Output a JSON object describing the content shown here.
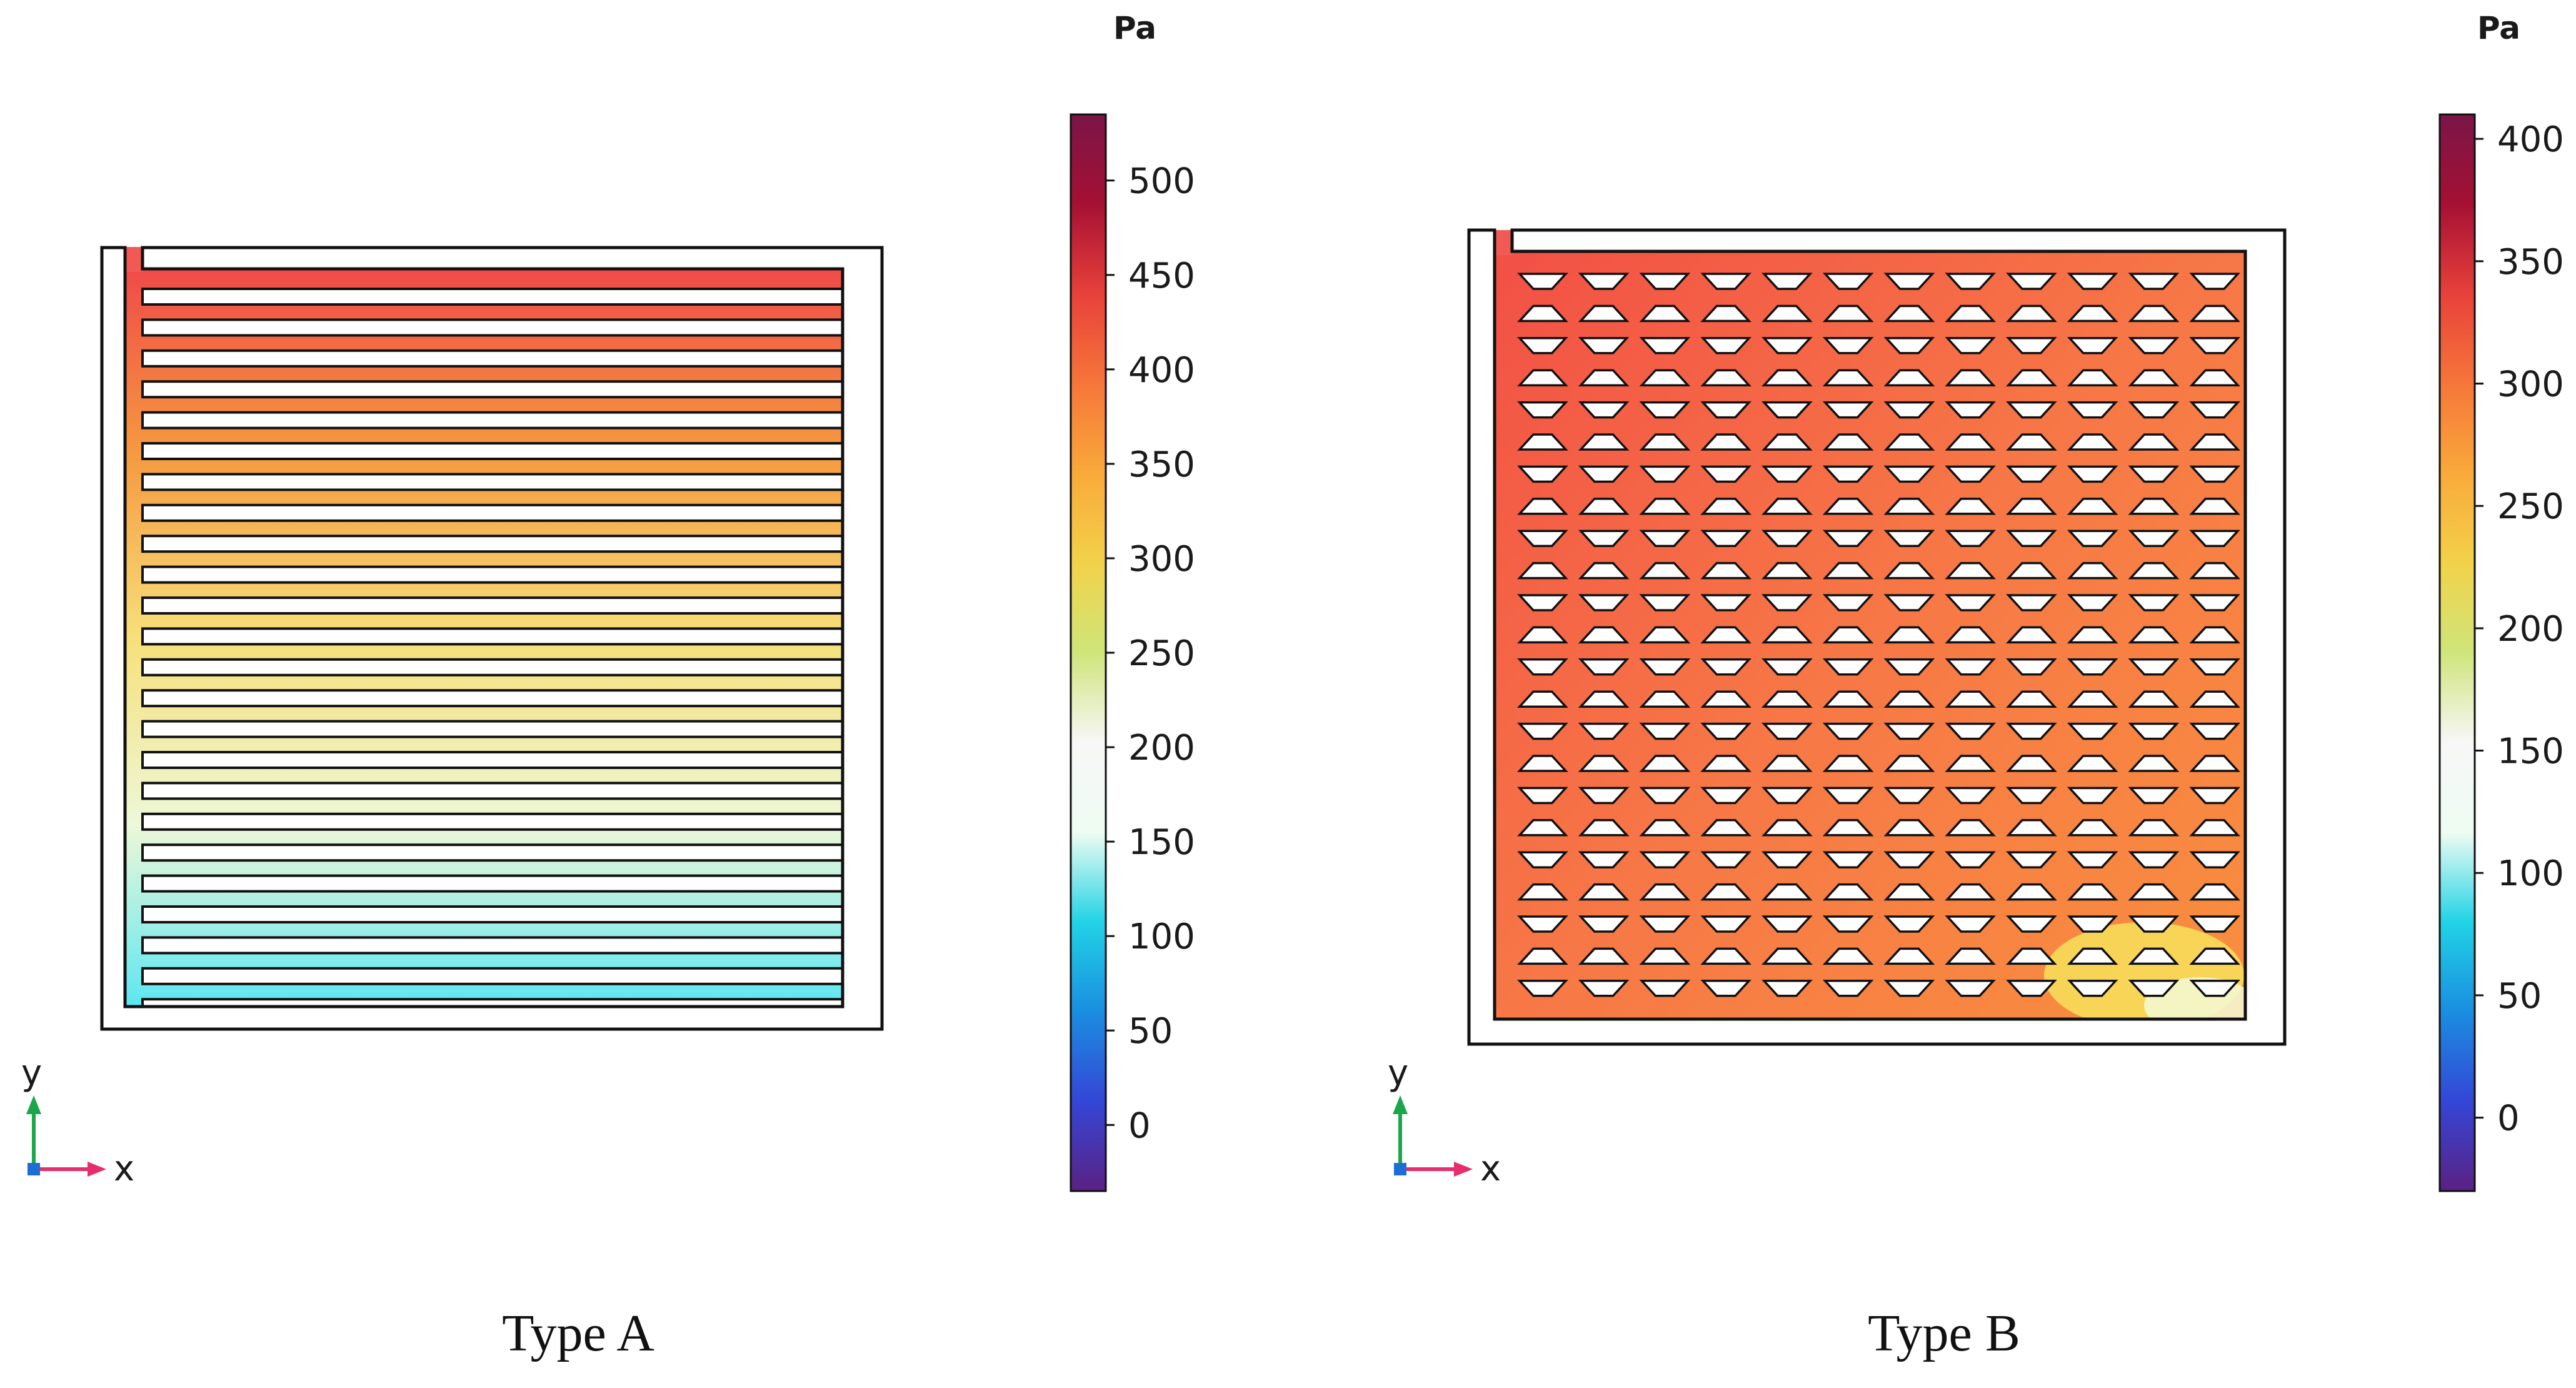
{
  "colors": {
    "scale": [
      "#5b2183",
      "#3446d6",
      "#1a8ee0",
      "#22d3e6",
      "#eefcf2",
      "#f7f7f7",
      "#cfe57a",
      "#f2d24a",
      "#f9a93a",
      "#f6763a",
      "#e8413a",
      "#a51034",
      "#7a1547"
    ],
    "outline": "#111111",
    "fill_A": [
      "#f04a48",
      "#f59a3f",
      "#f7e07a",
      "#edf8d8",
      "#5ae6f2"
    ],
    "fill_B": [
      "#f25045",
      "#f77846",
      "#f8903e"
    ]
  },
  "panels": [
    {
      "id": "A",
      "caption": "Type A",
      "unit": "Pa",
      "color_range": [
        -35,
        535
      ],
      "ticks": [
        "0",
        "50",
        "100",
        "150",
        "200",
        "250",
        "300",
        "350",
        "400",
        "450",
        "500"
      ],
      "tick_values": [
        0,
        50,
        100,
        150,
        200,
        250,
        300,
        350,
        400,
        450,
        500
      ],
      "axis_x": "x",
      "axis_y": "y",
      "channel_rows": 24
    },
    {
      "id": "B",
      "caption": "Type B",
      "unit": "Pa",
      "color_range": [
        -30,
        410
      ],
      "ticks": [
        "0",
        "50",
        "100",
        "150",
        "200",
        "250",
        "300",
        "350",
        "400"
      ],
      "tick_values": [
        0,
        50,
        100,
        150,
        200,
        250,
        300,
        350,
        400
      ],
      "axis_x": "x",
      "axis_y": "y",
      "island_rows": 23,
      "island_cols": 12
    }
  ]
}
